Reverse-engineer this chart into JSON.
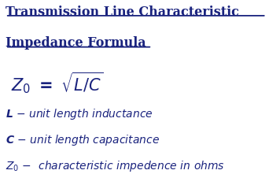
{
  "title_line1": "Transmission Line Characteristic",
  "title_line2": "Impedance Formula",
  "text_color": "#1a237e",
  "bg_color": "#ffffff",
  "title_fontsize": 11.5,
  "formula_fontsize": 15,
  "desc_fontsize": 10,
  "underline_color": "#1a237e"
}
